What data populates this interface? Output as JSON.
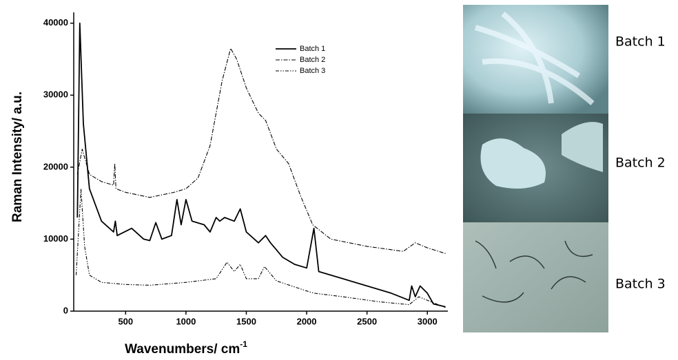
{
  "chart_data": {
    "type": "line",
    "x_label": {
      "text": "Wavenumbers/ cm",
      "superscript": "-1"
    },
    "y_label": "Raman Intensity/ a.u.",
    "xlim": [
      70,
      3170
    ],
    "ylim": [
      0,
      41500
    ],
    "xticks": [
      500,
      1000,
      1500,
      2000,
      2500,
      3000
    ],
    "yticks": [
      0,
      10000,
      20000,
      30000,
      40000
    ],
    "legend": "top-center",
    "series": [
      {
        "name": "Batch 1",
        "color": "#000000",
        "dash": "solid",
        "x": [
          100,
          120,
          150,
          200,
          300,
          400,
          415,
          430,
          550,
          650,
          700,
          750,
          800,
          880,
          925,
          960,
          1000,
          1050,
          1150,
          1200,
          1250,
          1280,
          1320,
          1400,
          1450,
          1500,
          1600,
          1660,
          1700,
          1750,
          1800,
          1900,
          2000,
          2060,
          2100,
          2300,
          2500,
          2700,
          2850,
          2870,
          2900,
          2940,
          3000,
          3050,
          3150
        ],
        "values": [
          13000,
          40000,
          26000,
          17000,
          12500,
          11000,
          12500,
          10500,
          11500,
          10000,
          9800,
          12300,
          10000,
          10500,
          15500,
          12000,
          15500,
          12500,
          12000,
          11000,
          13000,
          12500,
          13000,
          12500,
          14200,
          11000,
          9500,
          10500,
          9500,
          8500,
          7500,
          6500,
          6000,
          11500,
          5500,
          4500,
          3500,
          2500,
          1500,
          3500,
          2000,
          3500,
          2500,
          1000,
          600
        ]
      },
      {
        "name": "Batch 2",
        "color": "#000000",
        "dash": "dashdot",
        "x": [
          100,
          140,
          200,
          300,
          400,
          410,
          420,
          500,
          700,
          900,
          1000,
          1100,
          1200,
          1300,
          1370,
          1420,
          1500,
          1600,
          1660,
          1750,
          1850,
          1950,
          2050,
          2200,
          2500,
          2800,
          2900,
          3000,
          3150
        ],
        "values": [
          19000,
          22500,
          19000,
          18000,
          17500,
          20500,
          17000,
          16500,
          15800,
          16500,
          17000,
          18500,
          23000,
          32000,
          36500,
          35000,
          31000,
          27500,
          26500,
          22500,
          20500,
          16000,
          12000,
          10000,
          9000,
          8300,
          9500,
          8800,
          8000
        ]
      },
      {
        "name": "Batch 3",
        "color": "#000000",
        "dash": "dashdotdot",
        "x": [
          90,
          130,
          160,
          200,
          300,
          500,
          700,
          1000,
          1100,
          1250,
          1340,
          1400,
          1450,
          1500,
          1600,
          1650,
          1750,
          2000,
          2060,
          2300,
          2600,
          2850,
          2930,
          3000,
          3150
        ],
        "values": [
          5000,
          17000,
          9000,
          5000,
          4000,
          3700,
          3600,
          4000,
          4200,
          4500,
          6800,
          5500,
          6500,
          4500,
          4500,
          6200,
          4200,
          2800,
          2500,
          2000,
          1300,
          900,
          2000,
          1500,
          500
        ]
      }
    ]
  },
  "images": [
    {
      "label": "Batch 1"
    },
    {
      "label": "Batch 2"
    },
    {
      "label": "Batch 3"
    }
  ]
}
